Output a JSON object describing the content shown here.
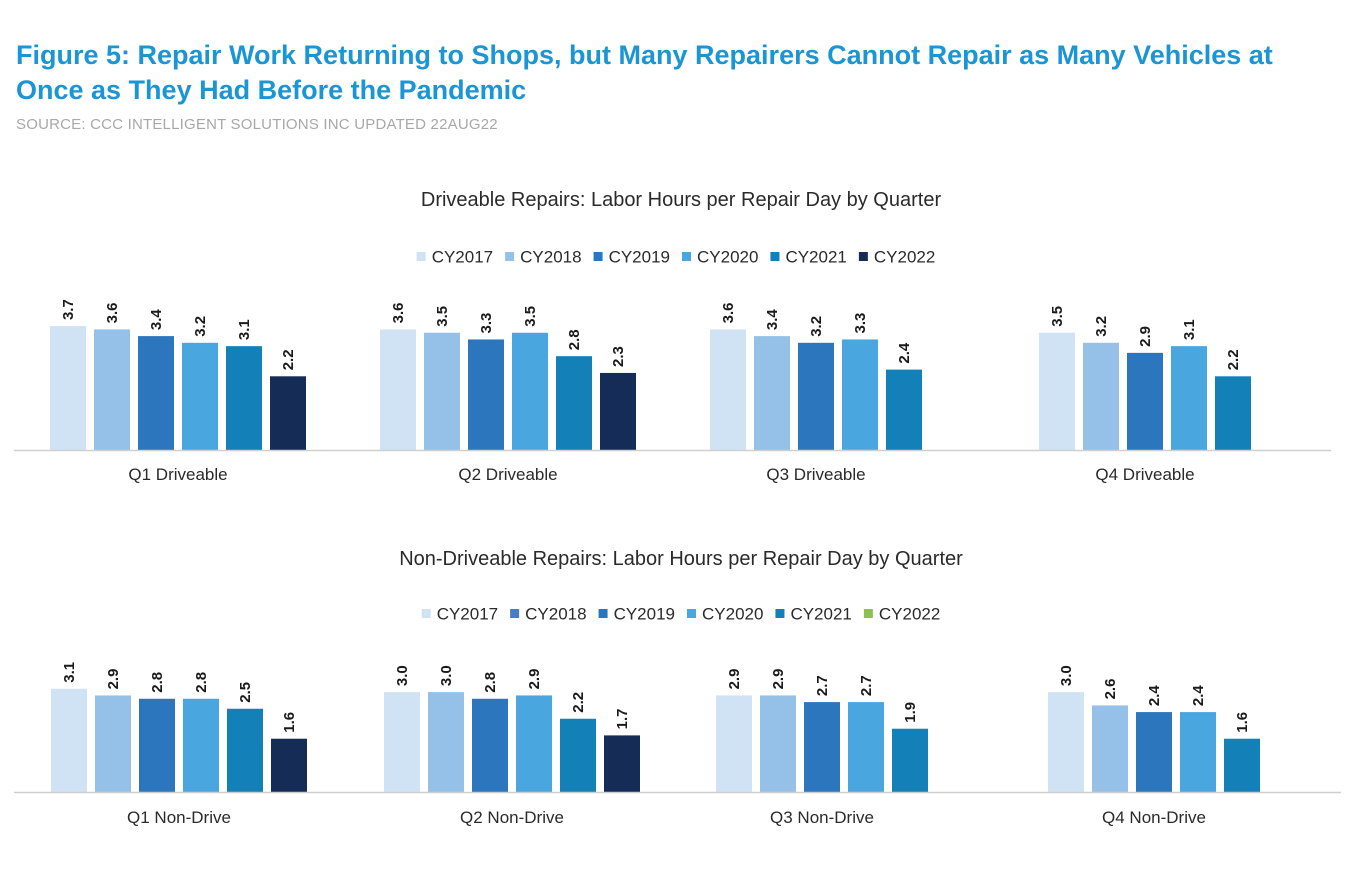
{
  "figure": {
    "title": "Figure 5: Repair Work Returning to Shops, but Many Repairers Cannot Repair as Many Vehicles at Once as They Had Before the Pandemic",
    "source": "SOURCE: CCC INTELLIGENT SOLUTIONS INC UPDATED 22AUG22"
  },
  "chart_data": [
    {
      "type": "bar",
      "title": "Driveable Repairs: Labor Hours per Repair Day by Quarter",
      "xlabel": "",
      "ylabel": "",
      "ylim": [
        0,
        4
      ],
      "grid": false,
      "legend": "top-center",
      "categories": [
        "Q1 Driveable",
        "Q2 Driveable",
        "Q3 Driveable",
        "Q4 Driveable"
      ],
      "legend_colors": [
        "#d0e3f5",
        "#95c1e8",
        "#2c76bd",
        "#4aa6df",
        "#1380b8",
        "#142c56"
      ],
      "series": [
        {
          "name": "CY2017",
          "color": "#d0e3f5",
          "values": [
            3.7,
            3.6,
            3.6,
            3.5
          ]
        },
        {
          "name": "CY2018",
          "color": "#95c1e8",
          "values": [
            3.6,
            3.5,
            3.4,
            3.2
          ]
        },
        {
          "name": "CY2019",
          "color": "#2c76bd",
          "values": [
            3.4,
            3.3,
            3.2,
            2.9
          ]
        },
        {
          "name": "CY2020",
          "color": "#4aa6df",
          "values": [
            3.2,
            3.5,
            3.3,
            3.1
          ]
        },
        {
          "name": "CY2021",
          "color": "#1380b8",
          "values": [
            3.1,
            2.8,
            2.4,
            2.2
          ]
        },
        {
          "name": "CY2022",
          "color": "#142c56",
          "values": [
            2.2,
            2.3,
            null,
            null
          ]
        }
      ]
    },
    {
      "type": "bar",
      "title": "Non-Driveable Repairs: Labor Hours per Repair Day by Quarter",
      "xlabel": "",
      "ylabel": "",
      "ylim": [
        0,
        4
      ],
      "grid": false,
      "legend": "top-center",
      "categories": [
        "Q1 Non-Drive",
        "Q2 Non-Drive",
        "Q3 Non-Drive",
        "Q4 Non-Drive"
      ],
      "legend_colors": [
        "#d0e3f5",
        "#4a7cc0",
        "#2c76bd",
        "#4aa6df",
        "#1380b8",
        "#8cc152"
      ],
      "series": [
        {
          "name": "CY2017",
          "color": "#d0e3f5",
          "values": [
            3.1,
            3.0,
            2.9,
            3.0
          ]
        },
        {
          "name": "CY2018",
          "color": "#95c1e8",
          "values": [
            2.9,
            3.0,
            2.9,
            2.6
          ]
        },
        {
          "name": "CY2019",
          "color": "#2c76bd",
          "values": [
            2.8,
            2.8,
            2.7,
            2.4
          ]
        },
        {
          "name": "CY2020",
          "color": "#4aa6df",
          "values": [
            2.8,
            2.9,
            2.7,
            2.4
          ]
        },
        {
          "name": "CY2021",
          "color": "#1380b8",
          "values": [
            2.5,
            2.2,
            1.9,
            1.6
          ]
        },
        {
          "name": "CY2022",
          "color": "#142c56",
          "values": [
            1.6,
            1.7,
            null,
            null
          ]
        }
      ]
    }
  ]
}
